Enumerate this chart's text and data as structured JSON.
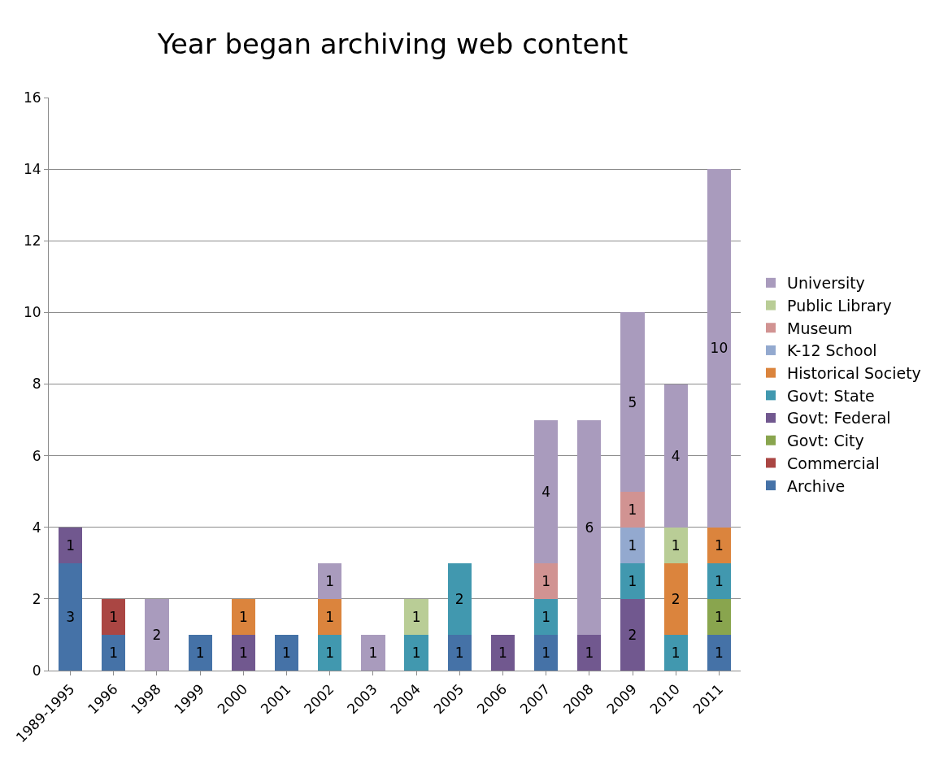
{
  "chart_data": {
    "type": "bar",
    "title": "Year began archiving web content",
    "stacked": true,
    "data_labels": true,
    "grid": "y",
    "legend": "right",
    "categories": [
      "1989-1995",
      "1996",
      "1998",
      "1999",
      "2000",
      "2001",
      "2002",
      "2003",
      "2004",
      "2005",
      "2006",
      "2007",
      "2008",
      "2009",
      "2010",
      "2011"
    ],
    "ylim": [
      0,
      16
    ],
    "yticks": [
      0,
      2,
      4,
      6,
      8,
      10,
      12,
      14,
      16
    ],
    "series": [
      {
        "name": "Archive",
        "color": "#4572a7",
        "values": [
          3,
          1,
          null,
          1,
          null,
          1,
          null,
          null,
          null,
          1,
          null,
          1,
          null,
          null,
          null,
          1
        ]
      },
      {
        "name": "Commercial",
        "color": "#aa4643",
        "values": [
          null,
          1,
          null,
          null,
          null,
          null,
          null,
          null,
          null,
          null,
          null,
          null,
          null,
          null,
          null,
          null
        ]
      },
      {
        "name": "Govt: City",
        "color": "#89a54e",
        "values": [
          null,
          null,
          null,
          null,
          null,
          null,
          null,
          null,
          null,
          null,
          null,
          null,
          null,
          null,
          null,
          1
        ]
      },
      {
        "name": "Govt: Federal",
        "color": "#71588f",
        "values": [
          1,
          null,
          null,
          null,
          1,
          null,
          null,
          null,
          null,
          null,
          1,
          null,
          1,
          2,
          null,
          null
        ]
      },
      {
        "name": "Govt: State",
        "color": "#4198af",
        "values": [
          null,
          null,
          null,
          null,
          null,
          null,
          1,
          null,
          1,
          2,
          null,
          1,
          null,
          1,
          1,
          1
        ]
      },
      {
        "name": "Historical Society",
        "color": "#db843d",
        "values": [
          null,
          null,
          null,
          null,
          1,
          null,
          1,
          null,
          null,
          null,
          null,
          null,
          null,
          null,
          2,
          1
        ]
      },
      {
        "name": "K-12 School",
        "color": "#93a9cf",
        "values": [
          null,
          null,
          null,
          null,
          null,
          null,
          null,
          null,
          null,
          null,
          null,
          null,
          null,
          1,
          null,
          null
        ]
      },
      {
        "name": "Museum",
        "color": "#d19392",
        "values": [
          null,
          null,
          null,
          null,
          null,
          null,
          null,
          null,
          null,
          null,
          null,
          1,
          null,
          1,
          null,
          null
        ]
      },
      {
        "name": "Public Library",
        "color": "#b9cd96",
        "values": [
          null,
          null,
          null,
          null,
          null,
          null,
          null,
          null,
          1,
          null,
          null,
          null,
          null,
          null,
          1,
          null
        ]
      },
      {
        "name": "University",
        "color": "#a99bbd",
        "values": [
          null,
          null,
          2,
          null,
          null,
          null,
          1,
          1,
          null,
          null,
          null,
          4,
          6,
          5,
          4,
          10
        ]
      }
    ]
  }
}
